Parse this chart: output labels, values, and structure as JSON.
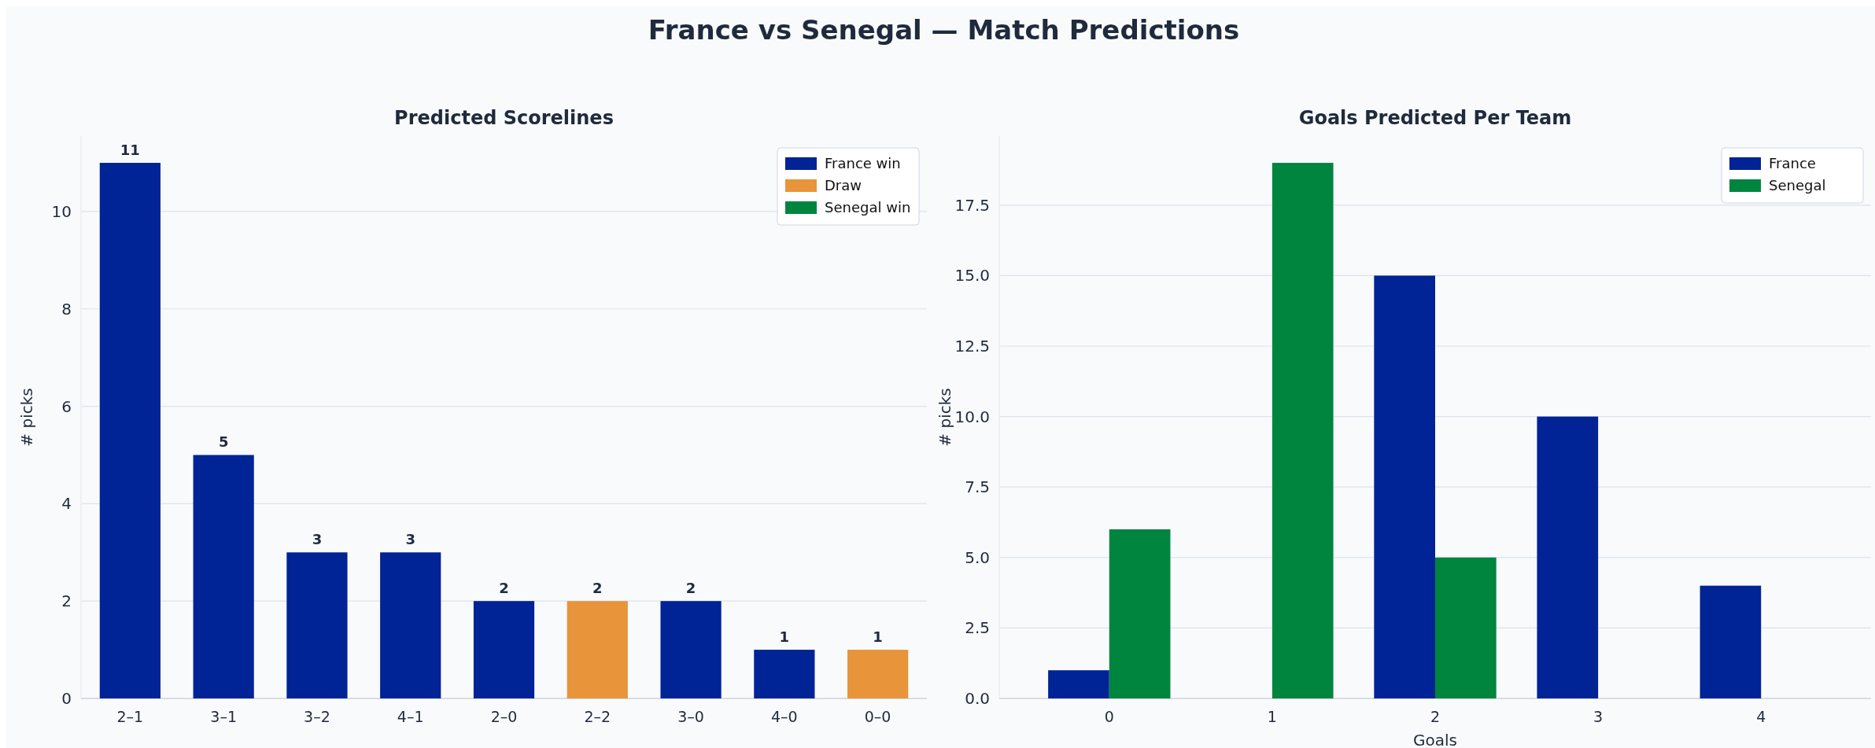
{
  "chart_data": [
    {
      "type": "bar",
      "title": "Predicted Scorelines",
      "ylabel": "# picks",
      "categories": [
        "2–1",
        "3–1",
        "3–2",
        "4–1",
        "2–0",
        "2–2",
        "3–0",
        "4–0",
        "0–0"
      ],
      "stacked": true,
      "series": [
        {
          "name": "France win",
          "color": "#002395",
          "values": [
            11,
            5,
            3,
            3,
            2,
            null,
            2,
            1,
            null
          ]
        },
        {
          "name": "Draw",
          "color": "#e8943a",
          "values": [
            null,
            null,
            null,
            null,
            null,
            2,
            null,
            null,
            1
          ]
        },
        {
          "name": "Senegal win",
          "color": "#00853f",
          "values": [
            null,
            null,
            null,
            null,
            null,
            null,
            null,
            null,
            null
          ]
        }
      ],
      "yticks": [
        0,
        2,
        4,
        6,
        8,
        10
      ],
      "ylim": [
        0,
        11.55
      ],
      "grid": "y",
      "legend": "top right",
      "data_labels": true,
      "annotations": [
        "France vs Senegal  —  Match Predictions"
      ]
    },
    {
      "type": "bar",
      "title": "Goals Predicted Per Team",
      "xlabel": "Goals",
      "ylabel": "# picks",
      "categories": [
        "0",
        "1",
        "2",
        "3",
        "4"
      ],
      "series": [
        {
          "name": "France",
          "color": "#002395",
          "values": [
            1,
            0,
            15,
            10,
            4
          ]
        },
        {
          "name": "Senegal",
          "color": "#00853f",
          "values": [
            6,
            19,
            5,
            0,
            0
          ]
        }
      ],
      "yticks": [
        {
          "value": 0,
          "label": "0.0"
        },
        {
          "value": 2.5,
          "label": "2.5"
        },
        {
          "value": 5,
          "label": "5.0"
        },
        {
          "value": 7.5,
          "label": "7.5"
        },
        {
          "value": 10,
          "label": "10.0"
        },
        {
          "value": 12.5,
          "label": "12.5"
        },
        {
          "value": 15,
          "label": "15.0"
        },
        {
          "value": 17.5,
          "label": "17.5"
        }
      ],
      "ylim": [
        0,
        19.95
      ],
      "grid": "y",
      "legend": "top right"
    }
  ]
}
